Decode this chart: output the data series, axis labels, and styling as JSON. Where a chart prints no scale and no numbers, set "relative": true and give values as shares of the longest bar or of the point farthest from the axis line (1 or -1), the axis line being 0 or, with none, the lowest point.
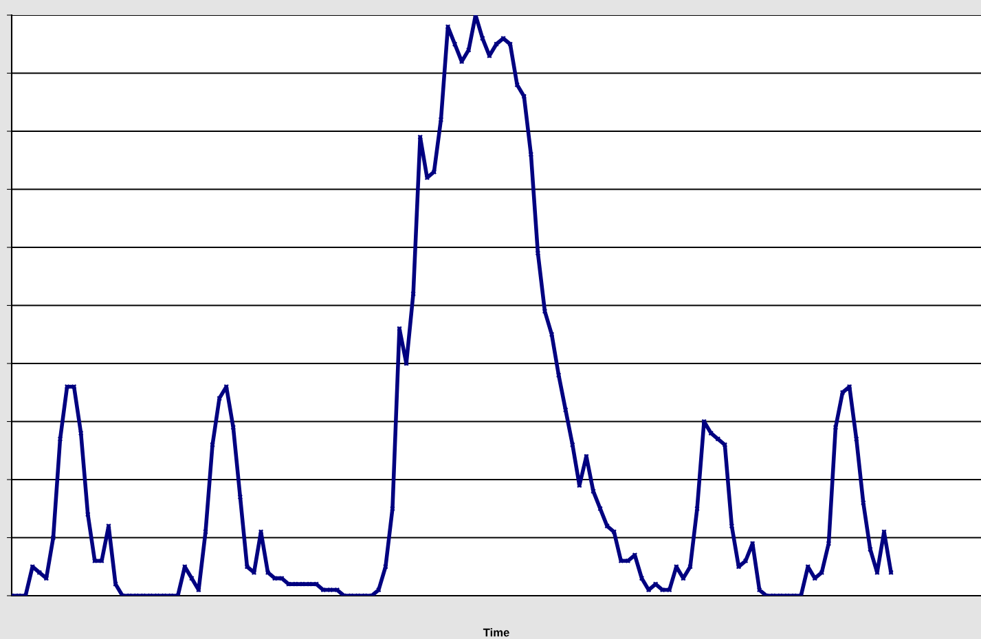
{
  "chart_data": {
    "type": "line",
    "xlabel": "Time",
    "relative": true,
    "grid": "y",
    "marker": "cross",
    "tick_labels": false,
    "categories": [
      null,
      null,
      null,
      null,
      null,
      null,
      null,
      null,
      null,
      null,
      null,
      null,
      null,
      null,
      null,
      null,
      null,
      null,
      null,
      null,
      null,
      null,
      null,
      null,
      null,
      null,
      null,
      null,
      null,
      null,
      null,
      null,
      null,
      null,
      null,
      null,
      null,
      null,
      null,
      null,
      null,
      null,
      null,
      null,
      null,
      null,
      null,
      null,
      null,
      null,
      null,
      null,
      null,
      null,
      null,
      null,
      null,
      null,
      null,
      null,
      null,
      null,
      null,
      null,
      null,
      null,
      null,
      null,
      null,
      null,
      null,
      null,
      null,
      null,
      null,
      null,
      null,
      null,
      null,
      null,
      null,
      null,
      null,
      null,
      null,
      null,
      null,
      null,
      null,
      null,
      null,
      null,
      null,
      null,
      null,
      null,
      null,
      null,
      null,
      null,
      null,
      null,
      null,
      null,
      null,
      null,
      null,
      null,
      null,
      null,
      null,
      null,
      null,
      null,
      null,
      null,
      null,
      null,
      null,
      null,
      null,
      null,
      null,
      null,
      null,
      null,
      null,
      null,
      null,
      null,
      null,
      null,
      null,
      null,
      null,
      null,
      null,
      null,
      null,
      null,
      null
    ],
    "series": [
      {
        "color": "#000080",
        "values": [
          0,
          0,
          0,
          0.05,
          0.04,
          0.03,
          0.1,
          0.27,
          0.36,
          0.36,
          0.28,
          0.14,
          0.06,
          0.06,
          0.12,
          0.02,
          0,
          0,
          0,
          0,
          0,
          0,
          0,
          0,
          0,
          0.05,
          0.03,
          0.01,
          0.11,
          0.26,
          0.34,
          0.36,
          0.29,
          0.17,
          0.05,
          0.04,
          0.11,
          0.04,
          0.03,
          0.03,
          0.02,
          0.02,
          0.02,
          0.02,
          0.02,
          0.01,
          0.01,
          0.01,
          0,
          0,
          0,
          0,
          0,
          0.01,
          0.05,
          0.15,
          0.46,
          0.4,
          0.52,
          0.79,
          0.72,
          0.73,
          0.82,
          0.98,
          0.95,
          0.92,
          0.94,
          1,
          0.96,
          0.93,
          0.95,
          0.96,
          0.95,
          0.88,
          0.86,
          0.76,
          0.59,
          0.49,
          0.45,
          0.38,
          0.32,
          0.26,
          0.19,
          0.24,
          0.18,
          0.15,
          0.12,
          0.11,
          0.06,
          0.06,
          0.07,
          0.03,
          0.01,
          0.02,
          0.01,
          0.01,
          0.05,
          0.03,
          0.05,
          0.15,
          0.3,
          0.28,
          0.27,
          0.26,
          0.12,
          0.05,
          0.06,
          0.09,
          0.01,
          0,
          0,
          0,
          0,
          0,
          0,
          0.05,
          0.03,
          0.04,
          0.09,
          0.29,
          0.35,
          0.36,
          0.27,
          0.16,
          0.08,
          0.04,
          0.11,
          0.04,
          null,
          null,
          null,
          null,
          null,
          null,
          null,
          null,
          null,
          null,
          null,
          null,
          null
        ]
      }
    ]
  }
}
